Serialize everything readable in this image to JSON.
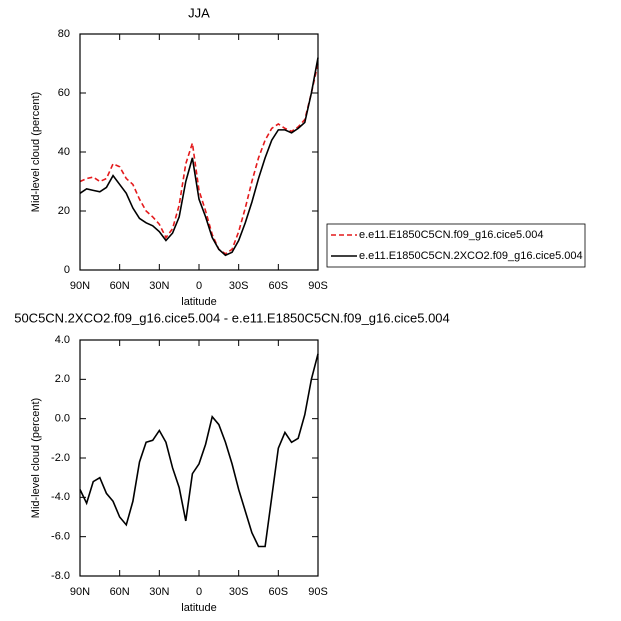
{
  "chart_data": [
    {
      "type": "line",
      "title": "JJA",
      "x_label": "latitude",
      "y_label": "Mid-level cloud (percent)",
      "x": [
        90,
        85,
        80,
        75,
        70,
        65,
        60,
        55,
        50,
        45,
        40,
        35,
        30,
        25,
        20,
        15,
        10,
        5,
        0,
        -5,
        -10,
        -15,
        -20,
        -25,
        -30,
        -35,
        -40,
        -45,
        -50,
        -55,
        -60,
        -65,
        -70,
        -75,
        -80,
        -85,
        -90
      ],
      "series": [
        {
          "name": "e.e11.E1850C5CN.f09_g16.cice5.004",
          "color": "#e41a1c",
          "line_style": "dashed",
          "values": [
            30,
            31,
            31.5,
            30,
            31,
            36,
            35,
            31,
            29,
            24,
            20,
            18,
            15.5,
            11,
            14,
            22,
            36,
            43,
            27,
            20,
            12,
            7,
            5.5,
            7,
            13,
            21,
            30,
            38,
            44,
            48,
            49.5,
            48,
            47,
            48.5,
            51,
            60,
            70
          ]
        },
        {
          "name": "e.e11.E1850C5CN.2XCO2.f09_g16.cice5.004",
          "color": "#000000",
          "line_style": "solid",
          "values": [
            26,
            27.5,
            27,
            26.5,
            28,
            32,
            29,
            26,
            21,
            17.5,
            16,
            15,
            13,
            10,
            12.5,
            18,
            30,
            38,
            24,
            18,
            11,
            7,
            5,
            6,
            10,
            16,
            23,
            31,
            38,
            44,
            47.5,
            47.5,
            46.5,
            48,
            50,
            60,
            72
          ]
        }
      ],
      "xlim": [
        90,
        -90
      ],
      "xticks": [
        {
          "value": 90,
          "label": "90N"
        },
        {
          "value": 60,
          "label": "60N"
        },
        {
          "value": 30,
          "label": "30N"
        },
        0,
        {
          "value": -30,
          "label": "30S"
        },
        {
          "value": -60,
          "label": "60S"
        },
        {
          "value": -90,
          "label": "90S"
        }
      ],
      "ylim": [
        0,
        80
      ],
      "yticks": [
        0,
        20,
        40,
        60,
        80
      ],
      "legend": "right"
    },
    {
      "type": "line",
      "title": "50C5CN.2XCO2.f09_g16.cice5.004 - e.e11.E1850C5CN.f09_g16.cice5.004",
      "x_label": "latitude",
      "y_label": "Mid-level cloud (percent)",
      "x": [
        90,
        85,
        80,
        75,
        70,
        65,
        60,
        55,
        50,
        45,
        40,
        35,
        30,
        25,
        20,
        15,
        10,
        5,
        0,
        -5,
        -10,
        -15,
        -20,
        -25,
        -30,
        -35,
        -40,
        -45,
        -50,
        -55,
        -60,
        -65,
        -70,
        -75,
        -80,
        -85,
        -90
      ],
      "series": [
        {
          "color": "#000000",
          "line_style": "solid",
          "values": [
            -3.6,
            -4.3,
            -3.2,
            -3.0,
            -3.8,
            -4.2,
            -5.0,
            -5.4,
            -4.2,
            -2.2,
            -1.2,
            -1.1,
            -0.6,
            -1.2,
            -2.5,
            -3.5,
            -5.2,
            -2.8,
            -2.3,
            -1.3,
            0.1,
            -0.3,
            -1.2,
            -2.3,
            -3.6,
            -4.7,
            -5.8,
            -6.5,
            -6.5,
            -4.0,
            -1.5,
            -0.7,
            -1.2,
            -1.0,
            0.2,
            2.0,
            3.3
          ]
        }
      ],
      "xlim": [
        90,
        -90
      ],
      "xticks": [
        {
          "value": 90,
          "label": "90N"
        },
        {
          "value": 60,
          "label": "60N"
        },
        {
          "value": 30,
          "label": "30N"
        },
        0,
        {
          "value": -30,
          "label": "30S"
        },
        {
          "value": -60,
          "label": "60S"
        },
        {
          "value": -90,
          "label": "90S"
        }
      ],
      "ylim": [
        -8,
        4
      ],
      "yticks": [
        {
          "value": -8,
          "label": "-8.0"
        },
        {
          "value": -6,
          "label": "-6.0"
        },
        {
          "value": -4,
          "label": "-4.0"
        },
        {
          "value": -2,
          "label": "-2.0"
        },
        {
          "value": 0,
          "label": "0.0"
        },
        {
          "value": 2,
          "label": "2.0"
        },
        {
          "value": 4,
          "label": "4.0"
        }
      ]
    }
  ]
}
